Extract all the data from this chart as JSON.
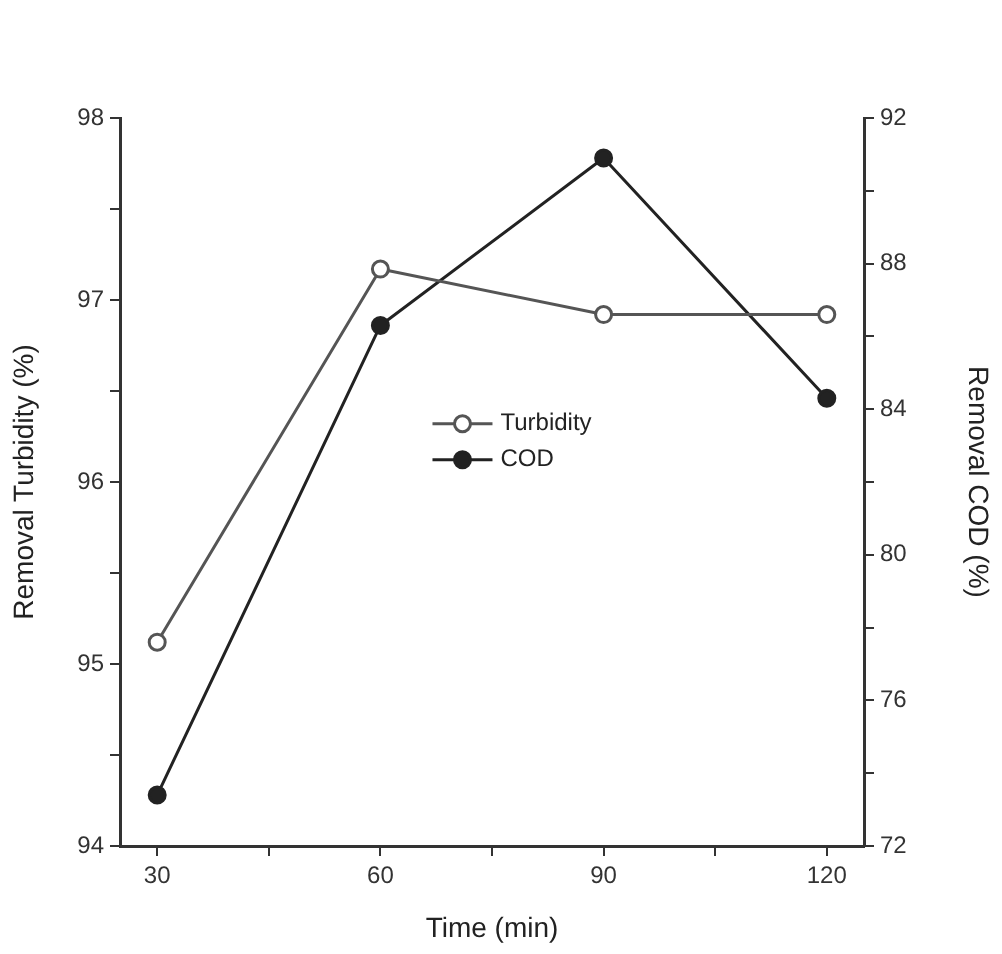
{
  "chart_data": {
    "type": "line",
    "xlabel": "Time (min)",
    "ylabel": "Removal Turbidity (%)",
    "y2label": "Removal COD (%)",
    "x": [
      30,
      60,
      90,
      120
    ],
    "series": [
      {
        "name": "Turbidity",
        "color": "#555555",
        "values": [
          95.12,
          97.17,
          96.92,
          96.92
        ]
      },
      {
        "name": "COD",
        "color": "#222222",
        "axis": "y2",
        "values": [
          73.4,
          86.3,
          90.9,
          84.3
        ]
      }
    ],
    "xlim": [
      25,
      125
    ],
    "xticks": [
      30,
      {
        "value": 45,
        "label": null
      },
      60,
      {
        "value": 75,
        "label": null
      },
      90,
      {
        "value": 105,
        "label": null
      },
      120
    ],
    "ylim": [
      94,
      98
    ],
    "yticks": [
      94,
      {
        "value": 94.5,
        "label": null
      },
      95,
      {
        "value": 95.5,
        "label": null
      },
      96,
      {
        "value": 96.5,
        "label": null
      },
      97,
      {
        "value": 97.5,
        "label": null
      },
      98
    ],
    "y2lim": [
      72,
      92
    ],
    "y2ticks": [
      72,
      {
        "value": 74,
        "label": null
      },
      76,
      {
        "value": 78,
        "label": null
      },
      80,
      {
        "value": 82,
        "label": null
      },
      84,
      {
        "value": 86,
        "label": null
      },
      88,
      {
        "value": 90,
        "label": null
      },
      92
    ],
    "grid": false,
    "legend": "center",
    "marker": "circle",
    "line_style": "solid"
  }
}
